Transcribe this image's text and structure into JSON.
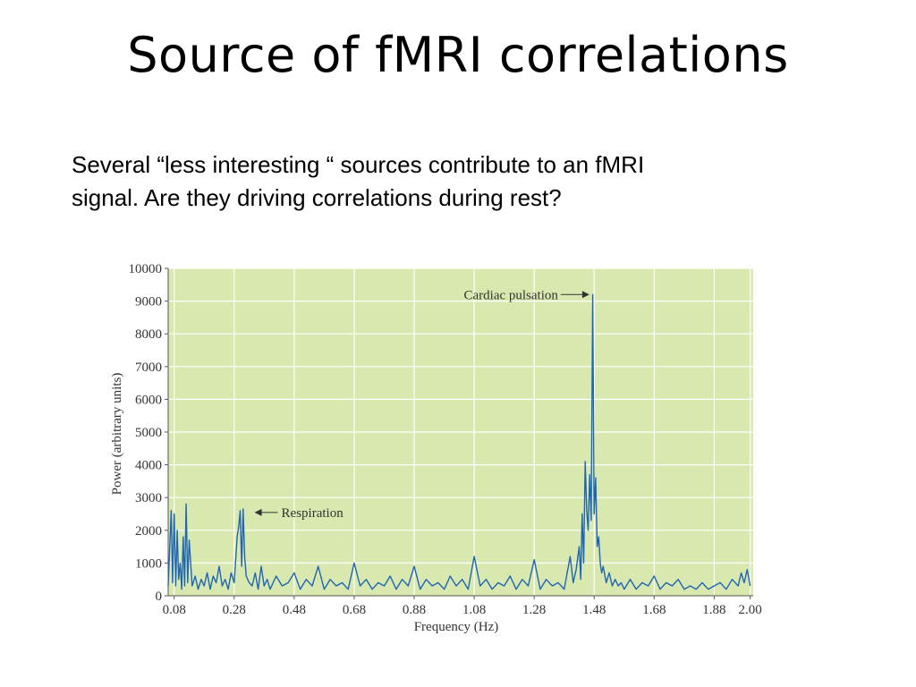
{
  "slide": {
    "title": "Source of fMRI correlations",
    "body_lines": [
      "Several “less interesting “ sources contribute to an fMRI",
      "signal. Are they driving correlations during rest?"
    ]
  },
  "chart_data": {
    "type": "line",
    "xlabel": "Frequency (Hz)",
    "ylabel": "Power (arbitrary units)",
    "xlim": [
      0.06,
      2.01
    ],
    "ylim": [
      0,
      10000
    ],
    "xticks": [
      0.08,
      0.28,
      0.48,
      0.68,
      0.88,
      1.08,
      1.28,
      1.48,
      1.68,
      1.88,
      2.0
    ],
    "xtick_labels": [
      "0.08",
      "0.28",
      "0.48",
      "0.68",
      "0.88",
      "1.08",
      "1.28",
      "1.48",
      "1.68",
      "1.88",
      "2.00"
    ],
    "yticks": [
      0,
      1000,
      2000,
      3000,
      4000,
      5000,
      6000,
      7000,
      8000,
      9000,
      10000
    ],
    "ytick_labels": [
      "0",
      "1000",
      "2000",
      "3000",
      "4000",
      "5000",
      "6000",
      "7000",
      "8000",
      "9000",
      "10000"
    ],
    "grid": true,
    "background_color": "#d8e8ae",
    "line_color": "#1f66b3",
    "annotations": [
      {
        "text": "Respiration",
        "x": 0.33,
        "y": 2600
      },
      {
        "text": "Cardiac pulsation",
        "x": 1.47,
        "y": 9200
      }
    ],
    "series": [
      {
        "x": [
          0.06,
          0.07,
          0.075,
          0.08,
          0.085,
          0.09,
          0.095,
          0.1,
          0.105,
          0.11,
          0.115,
          0.12,
          0.125,
          0.13,
          0.14,
          0.15,
          0.16,
          0.17,
          0.18,
          0.19,
          0.2,
          0.21,
          0.22,
          0.23,
          0.24,
          0.25,
          0.26,
          0.27,
          0.28,
          0.29,
          0.295,
          0.3,
          0.305,
          0.31,
          0.315,
          0.32,
          0.33,
          0.34,
          0.35,
          0.36,
          0.37,
          0.38,
          0.39,
          0.4,
          0.42,
          0.44,
          0.46,
          0.48,
          0.5,
          0.52,
          0.54,
          0.56,
          0.58,
          0.6,
          0.62,
          0.64,
          0.66,
          0.68,
          0.7,
          0.72,
          0.74,
          0.76,
          0.78,
          0.8,
          0.82,
          0.84,
          0.86,
          0.88,
          0.9,
          0.92,
          0.94,
          0.96,
          0.98,
          1.0,
          1.02,
          1.04,
          1.06,
          1.08,
          1.1,
          1.12,
          1.14,
          1.16,
          1.18,
          1.2,
          1.22,
          1.24,
          1.26,
          1.28,
          1.3,
          1.32,
          1.34,
          1.36,
          1.38,
          1.4,
          1.41,
          1.42,
          1.43,
          1.435,
          1.44,
          1.445,
          1.45,
          1.455,
          1.46,
          1.465,
          1.47,
          1.475,
          1.48,
          1.485,
          1.49,
          1.495,
          1.5,
          1.505,
          1.51,
          1.52,
          1.53,
          1.54,
          1.55,
          1.56,
          1.57,
          1.58,
          1.6,
          1.62,
          1.64,
          1.66,
          1.68,
          1.7,
          1.72,
          1.74,
          1.76,
          1.78,
          1.8,
          1.82,
          1.84,
          1.86,
          1.88,
          1.9,
          1.92,
          1.94,
          1.96,
          1.97,
          1.98,
          1.99,
          2.0
        ],
        "y": [
          300,
          2600,
          400,
          2500,
          300,
          2000,
          500,
          1000,
          200,
          1800,
          300,
          2800,
          400,
          1700,
          300,
          600,
          200,
          500,
          300,
          700,
          200,
          600,
          400,
          900,
          300,
          500,
          200,
          700,
          400,
          1800,
          2100,
          2600,
          900,
          2650,
          1200,
          600,
          400,
          300,
          700,
          200,
          900,
          300,
          500,
          200,
          600,
          300,
          400,
          700,
          200,
          500,
          300,
          900,
          200,
          500,
          300,
          400,
          200,
          1000,
          300,
          500,
          200,
          400,
          300,
          600,
          200,
          500,
          300,
          900,
          200,
          500,
          300,
          400,
          200,
          600,
          300,
          500,
          200,
          1200,
          300,
          500,
          200,
          400,
          300,
          600,
          200,
          500,
          300,
          1100,
          200,
          500,
          300,
          400,
          200,
          1200,
          400,
          800,
          1500,
          500,
          2500,
          1000,
          4100,
          2600,
          2000,
          3700,
          2300,
          9200,
          2500,
          3600,
          1500,
          1800,
          1000,
          700,
          900,
          400,
          700,
          300,
          500,
          300,
          400,
          200,
          500,
          200,
          400,
          300,
          600,
          200,
          400,
          300,
          500,
          200,
          300,
          200,
          400,
          200,
          300,
          400,
          200,
          500,
          300,
          700,
          400,
          800,
          300
        ]
      }
    ]
  }
}
